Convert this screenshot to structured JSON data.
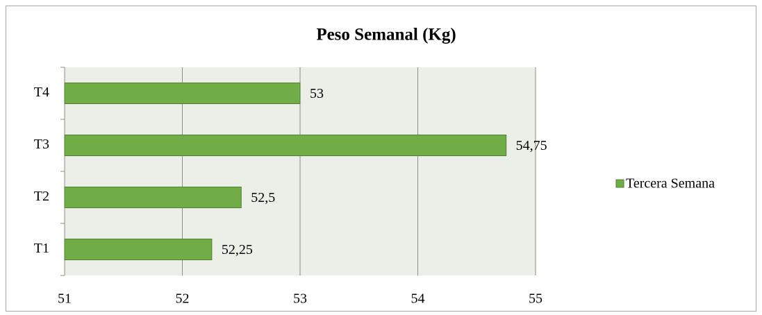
{
  "chart_data": {
    "type": "bar",
    "orientation": "horizontal",
    "title": "Peso Semanal (Kg)",
    "categories": [
      "T1",
      "T2",
      "T3",
      "T4"
    ],
    "values": [
      52.25,
      52.5,
      54.75,
      53
    ],
    "value_labels": [
      "52,25",
      "52,5",
      "54,75",
      "53"
    ],
    "series_name": "Tercera Semana",
    "color": "#70ad47",
    "xlim": [
      51,
      55
    ],
    "xticks": [
      51,
      52,
      53,
      54,
      55
    ],
    "grid": true,
    "legend": "right"
  }
}
